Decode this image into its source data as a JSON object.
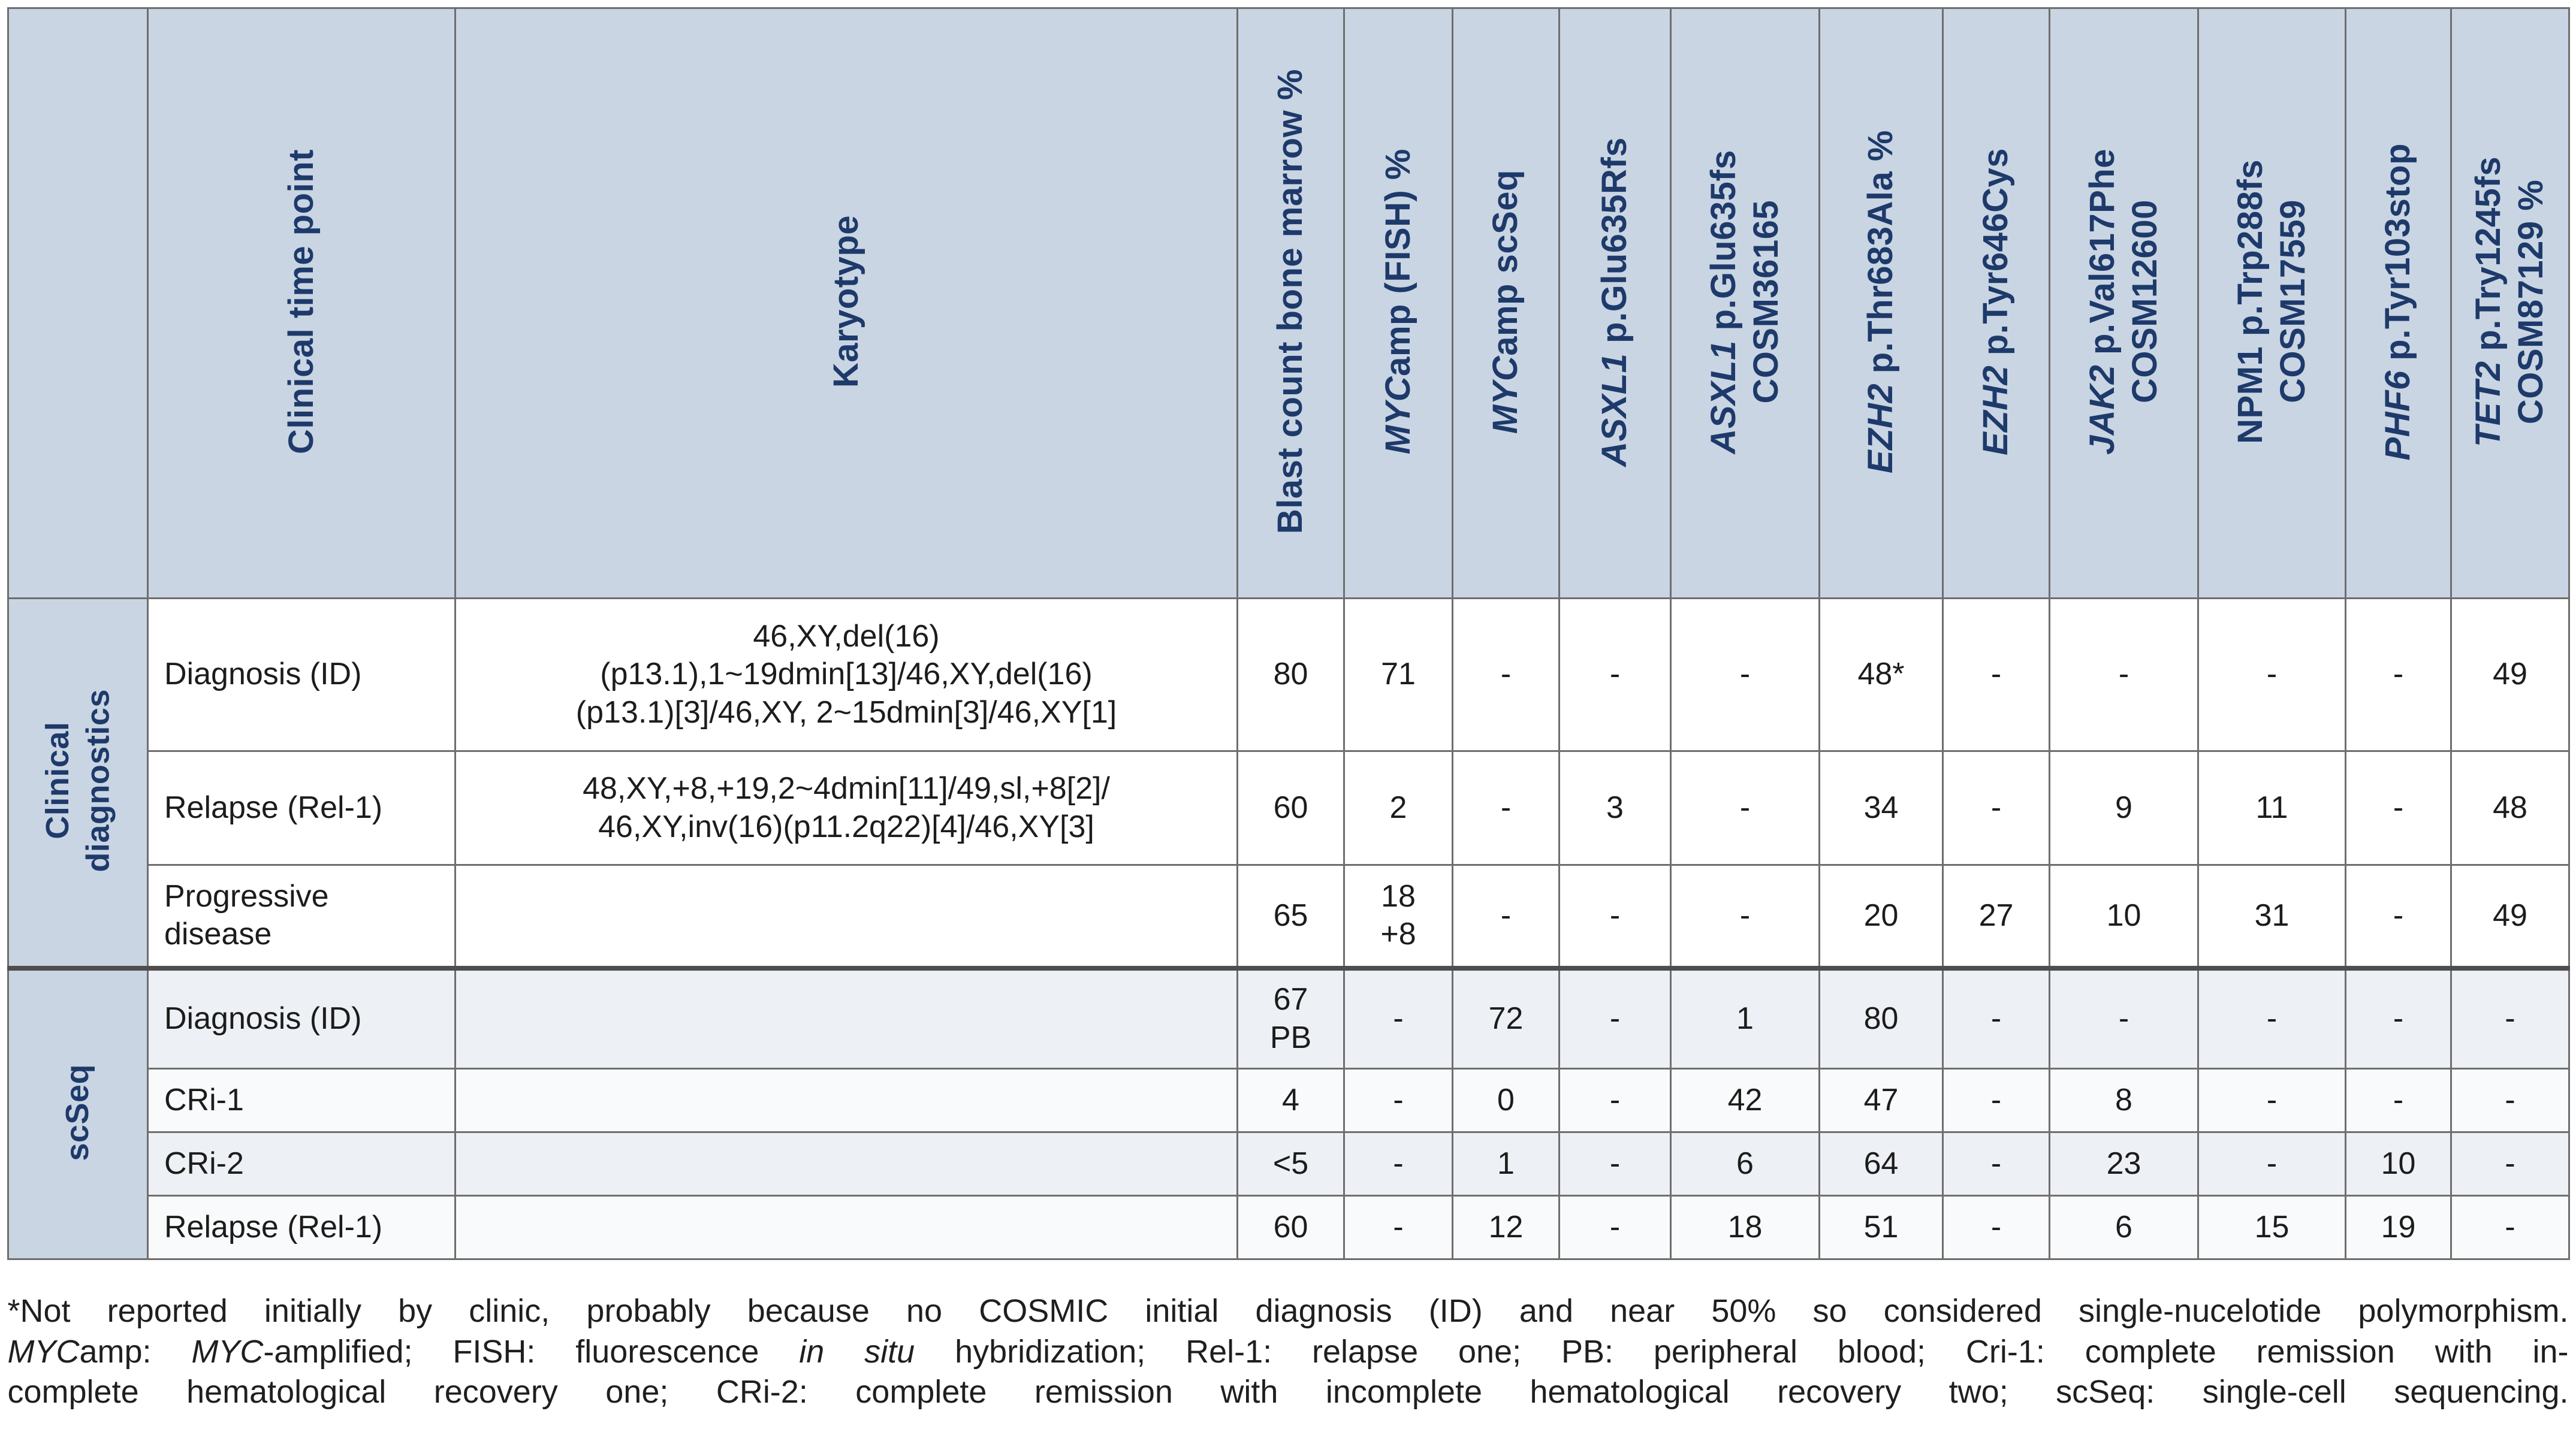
{
  "colors": {
    "header_bg": "#c9d5e2",
    "header_text": "#1e3a6b",
    "body_text": "#1c1c1c",
    "border": "#6e6e6e",
    "separator": "#4e4e4e",
    "stripe_a": "#edf0f4",
    "stripe_b": "#f9fafb"
  },
  "table": {
    "columns": [
      {
        "key": "clinical_time_point",
        "lines": [
          [
            {
              "t": "Clinical time point"
            }
          ]
        ]
      },
      {
        "key": "karyotype",
        "lines": [
          [
            {
              "t": "Karyotype"
            }
          ]
        ]
      },
      {
        "key": "blast_count_bone_marrow_pct",
        "lines": [
          [
            {
              "t": "Blast count bone marrow %"
            }
          ]
        ]
      },
      {
        "key": "mycamp_fish_pct",
        "lines": [
          [
            {
              "t": "MYC",
              "i": true
            },
            {
              "t": "amp (FISH) %"
            }
          ]
        ]
      },
      {
        "key": "mycamp_scseq",
        "lines": [
          [
            {
              "t": "MYC",
              "i": true
            },
            {
              "t": "amp scSeq"
            }
          ]
        ]
      },
      {
        "key": "asxl1_glu635rfs",
        "lines": [
          [
            {
              "t": "ASXL1",
              "i": true
            },
            {
              "t": " p.Glu635Rfs"
            }
          ]
        ]
      },
      {
        "key": "asxl1_glu635fs_cosm36165",
        "lines": [
          [
            {
              "t": "ASXL1",
              "i": true
            },
            {
              "t": " p.Glu635fs"
            }
          ],
          [
            {
              "t": "COSM36165"
            }
          ]
        ]
      },
      {
        "key": "ezh2_thr683ala_pct",
        "lines": [
          [
            {
              "t": "EZH2",
              "i": true
            },
            {
              "t": " p.Thr683Ala %"
            }
          ]
        ]
      },
      {
        "key": "ezh2_tyr646cys",
        "lines": [
          [
            {
              "t": "EZH2",
              "i": true
            },
            {
              "t": " p.Tyr646Cys"
            }
          ]
        ]
      },
      {
        "key": "jak2_val617phe_cosm12600",
        "lines": [
          [
            {
              "t": "JAK2",
              "i": true
            },
            {
              "t": " p.Val617Phe"
            }
          ],
          [
            {
              "t": "COSM12600"
            }
          ]
        ]
      },
      {
        "key": "npm1_trp288fs_cosm17559",
        "lines": [
          [
            {
              "t": "NPM1 p.Trp288fs"
            }
          ],
          [
            {
              "t": "COSM17559"
            }
          ]
        ]
      },
      {
        "key": "phf6_tyr103stop",
        "lines": [
          [
            {
              "t": "PHF6",
              "i": true
            },
            {
              "t": " p.Tyr103stop"
            }
          ]
        ]
      },
      {
        "key": "tet2_try1245fs_cosm87129_pct",
        "lines": [
          [
            {
              "t": "TET2",
              "i": true
            },
            {
              "t": " p.Try1245fs"
            }
          ],
          [
            {
              "t": "COSM87129 %"
            }
          ]
        ]
      }
    ],
    "groups": [
      {
        "label": "Clinical\ndiagnostics",
        "rows": [
          {
            "time_point": "Diagnosis (ID)",
            "karyotype": "46,XY,del(16)\n(p13.1),1~19dmin[13]/46,XY,del(16)\n(p13.1)[3]/46,XY, 2~15dmin[3]/46,XY[1]",
            "values": [
              "80",
              "71",
              "-",
              "-",
              "-",
              "48*",
              "-",
              "-",
              "-",
              "-",
              "49"
            ]
          },
          {
            "time_point": "Relapse (Rel-1)",
            "karyotype": "48,XY,+8,+19,2~4dmin[11]/49,sl,+8[2]/\n46,XY,inv(16)(p11.2q22)[4]/46,XY[3]",
            "values": [
              "60",
              "2",
              "-",
              "3",
              "-",
              "34",
              "-",
              "9",
              "11",
              "-",
              "48"
            ]
          },
          {
            "time_point": "Progressive\ndisease",
            "karyotype": "",
            "values": [
              "65",
              "18\n+8",
              "-",
              "-",
              "-",
              "20",
              "27",
              "10",
              "31",
              "-",
              "49"
            ]
          }
        ]
      },
      {
        "label": "scSeq",
        "rows": [
          {
            "time_point": "Diagnosis (ID)",
            "karyotype": "",
            "values": [
              "67\nPB",
              "-",
              "72",
              "-",
              "1",
              "80",
              "-",
              "-",
              "-",
              "-",
              "-"
            ]
          },
          {
            "time_point": "CRi-1",
            "karyotype": "",
            "values": [
              "4",
              "-",
              "0",
              "-",
              "42",
              "47",
              "-",
              "8",
              "-",
              "-",
              "-"
            ]
          },
          {
            "time_point": "CRi-2",
            "karyotype": "",
            "values": [
              "<5",
              "-",
              "1",
              "-",
              "6",
              "64",
              "-",
              "23",
              "-",
              "10",
              "-"
            ]
          },
          {
            "time_point": "Relapse (Rel-1)",
            "karyotype": "",
            "values": [
              "60",
              "-",
              "12",
              "-",
              "18",
              "51",
              "-",
              "6",
              "15",
              "19",
              "-"
            ]
          }
        ]
      }
    ]
  },
  "footnote": {
    "lines": [
      [
        {
          "t": "*Not reported initially by clinic, probably because no COSMIC initial diagnosis (ID) and near 50% so considered single-nucelotide polymorphism."
        }
      ],
      [
        {
          "t": "MYC",
          "i": true
        },
        {
          "t": "amp: "
        },
        {
          "t": "MYC",
          "i": true
        },
        {
          "t": "-amplified; FISH: fluorescence "
        },
        {
          "t": "in situ",
          "i": true
        },
        {
          "t": " hybridization; Rel-1: relapse one; PB: peripheral blood; Cri-1: complete remission with in-"
        }
      ],
      [
        {
          "t": "complete hematological recovery one; CRi-2: complete remission with incomplete hematological recovery two; scSeq: single-cell sequencing."
        }
      ]
    ]
  }
}
